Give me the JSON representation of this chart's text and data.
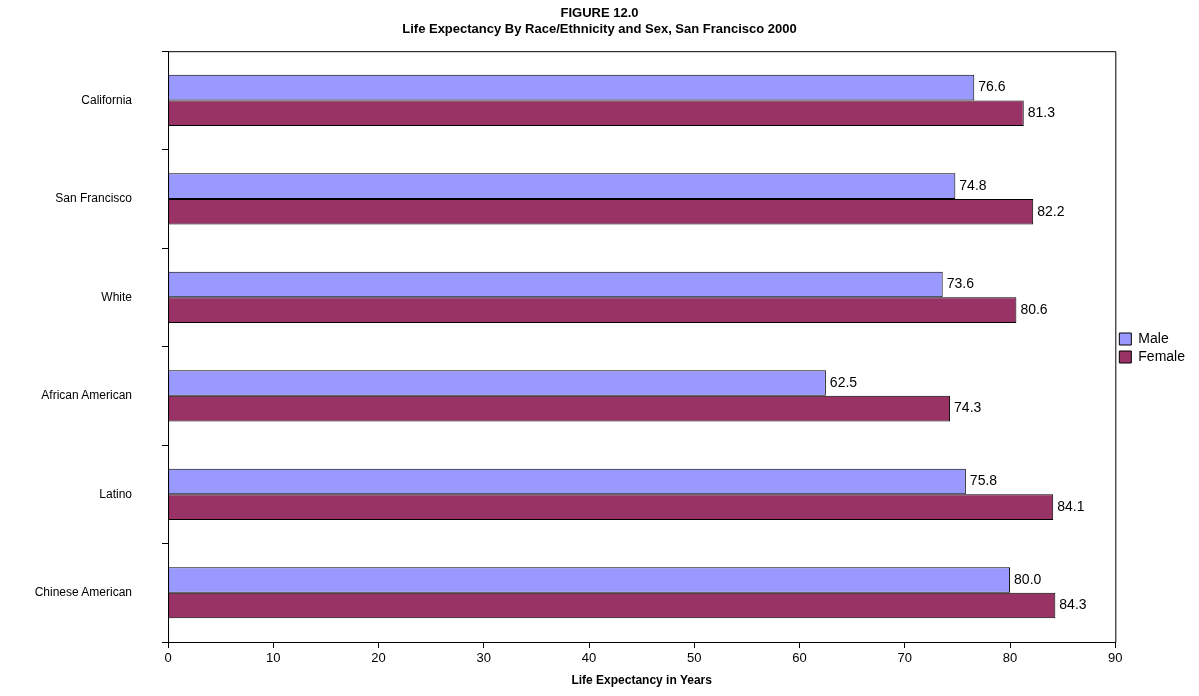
{
  "chart_data": {
    "type": "bar",
    "orientation": "horizontal",
    "title": [
      "FIGURE 12.0",
      "Life Expectancy By Race/Ethnicity and Sex, San Francisco 2000"
    ],
    "xlabel": "Life Expectancy in Years",
    "categories": [
      "California",
      "San Francisco",
      "White",
      "African American",
      "Latino",
      "Chinese American"
    ],
    "series": [
      {
        "name": "Male",
        "color": "#9999ff",
        "values": [
          76.6,
          74.8,
          73.6,
          62.5,
          75.8,
          80.0
        ],
        "value_labels": [
          "76.6",
          "74.8",
          "73.6",
          "62.5",
          "75.8",
          "80.0"
        ]
      },
      {
        "name": "Female",
        "color": "#993366",
        "values": [
          81.3,
          82.2,
          80.6,
          74.3,
          84.1,
          84.3
        ],
        "value_labels": [
          "81.3",
          "82.2",
          "80.6",
          "74.3",
          "84.1",
          "84.3"
        ]
      }
    ],
    "xlim": [
      0,
      90
    ],
    "xticks": [
      0,
      10,
      20,
      30,
      40,
      50,
      60,
      70,
      80,
      90
    ],
    "grid": false,
    "legend": "right"
  }
}
